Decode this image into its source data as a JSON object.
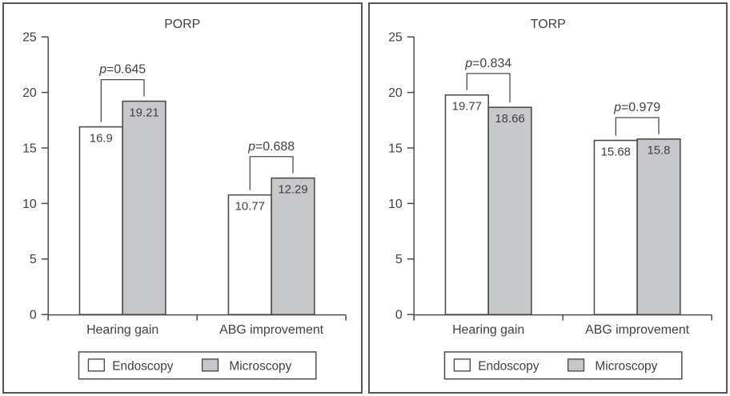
{
  "colors": {
    "endoscopy_fill": "#ffffff",
    "microscopy_fill": "#c7c8ca",
    "stroke": "#4b4c4e",
    "text": "#414144",
    "panel_border": "#55565a",
    "background": "#ffffff"
  },
  "chart_data": [
    {
      "type": "bar",
      "title": "PORP",
      "categories": [
        "Hearing gain",
        "ABG improvement"
      ],
      "series": [
        {
          "name": "Endoscopy",
          "values": [
            16.9,
            10.77
          ],
          "fill": "#ffffff"
        },
        {
          "name": "Microscopy",
          "values": [
            19.21,
            12.29
          ],
          "fill": "#c7c8ca"
        }
      ],
      "value_labels": [
        [
          "16.9",
          "19.21"
        ],
        [
          "10.77",
          "12.29"
        ]
      ],
      "p_values": [
        "p=0.645",
        "p=0.688"
      ],
      "ylim": [
        0,
        25
      ],
      "yticks": [
        0,
        5,
        10,
        15,
        20,
        25
      ],
      "legend": [
        "Endoscopy",
        "Microscopy"
      ],
      "legend_position": "bottom",
      "grid": false
    },
    {
      "type": "bar",
      "title": "TORP",
      "categories": [
        "Hearing gain",
        "ABG improvement"
      ],
      "series": [
        {
          "name": "Endoscopy",
          "values": [
            19.77,
            15.68
          ],
          "fill": "#ffffff"
        },
        {
          "name": "Microscopy",
          "values": [
            18.66,
            15.8
          ],
          "fill": "#c7c8ca"
        }
      ],
      "value_labels": [
        [
          "19.77",
          "18.66"
        ],
        [
          "15.68",
          "15.8"
        ]
      ],
      "p_values": [
        "p=0.834",
        "p=0.979"
      ],
      "ylim": [
        0,
        25
      ],
      "yticks": [
        0,
        5,
        10,
        15,
        20,
        25
      ],
      "legend": [
        "Endoscopy",
        "Microscopy"
      ],
      "legend_position": "bottom",
      "grid": false
    }
  ]
}
